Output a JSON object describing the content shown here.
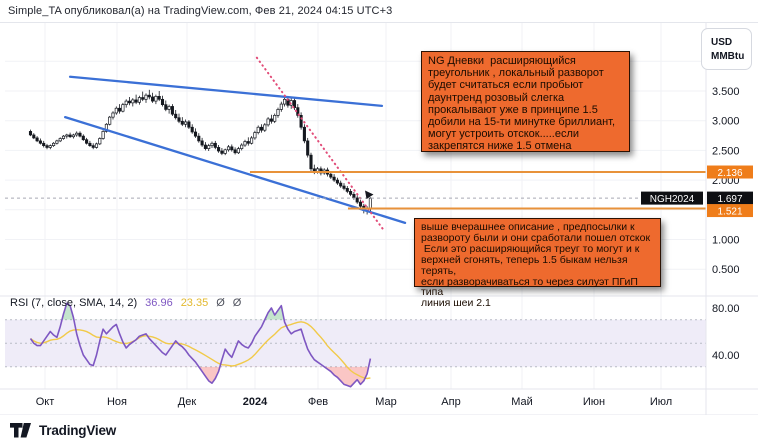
{
  "header": {
    "published_line": "Simple_TA опубликовал(а) на TradingView.com, Фев 21, 2024 04:15 UTC+3"
  },
  "price_scale_controls": {
    "currency": "USD",
    "unit": "MMBtu"
  },
  "rsi_header": {
    "title": "RSI (7, close, SMA, 14, 2)",
    "rsi_value": "36.96",
    "ma_value": "23.35",
    "source_1": "Ø",
    "source_2": "Ø"
  },
  "annotations": [
    {
      "name": "note-top",
      "text": "NG Дневки  расширяющийся\nтреугольник , локальный разворот\nбудет считаться если пробьют\nдаунтренд розовый слегка\nпрокалывают уже в принципе 1.5\nдобили на 15-ти минутке бриллиант,\nмогут устроить отскок.....если\nзакрепятся ниже 1.5 отмена"
    },
    {
      "name": "note-bottom",
      "text": "выше вчерашнее описание , предпосылки к\nразвороту были и они сработали пошел отскок\n Если это расширяющийся треуг то могут и к\nверхней сгонять, теперь 1.5 быкам нельзя терять,\nесли разворачиваться то через силуэт ПГиП типа\nлиния шеи 2.1"
    }
  ],
  "footer": {
    "brand": "TradingView"
  },
  "chart_data": {
    "type": "candlestick",
    "symbol": "NGH2024",
    "last_price": 1.697,
    "last_price_label": "1.697",
    "x_axis_labels": [
      "Окт",
      "Ноя",
      "Дек",
      "2024",
      "Фев",
      "Мар",
      "Апр",
      "Май",
      "Июн",
      "Июл"
    ],
    "price_axis_ticks": [
      {
        "label": "3.500",
        "value": 3.5
      },
      {
        "label": "3.000",
        "value": 3.0
      },
      {
        "label": "2.500",
        "value": 2.5
      },
      {
        "label": "2.000",
        "value": 2.0
      },
      {
        "label": "1.000",
        "value": 1.0
      },
      {
        "label": "0.500",
        "value": 0.5
      }
    ],
    "grid_prices": [
      4.0,
      3.5,
      3.0,
      2.5,
      2.0,
      1.5,
      1.0,
      0.5
    ],
    "visible_price_range": [
      0.05,
      4.6
    ],
    "levels": [
      {
        "label": "2.136",
        "value": 2.136,
        "start_bar": 66.5
      },
      {
        "label": "1.521",
        "value": 1.521,
        "start_bar": 96.2
      }
    ],
    "trendlines": [
      {
        "name": "upper-triangle-line",
        "points": [
          [
            12,
            3.74
          ],
          [
            106.5,
            3.25
          ]
        ]
      },
      {
        "name": "lower-triangle-line",
        "points": [
          [
            10.5,
            3.06
          ],
          [
            113.5,
            1.28
          ]
        ]
      }
    ],
    "downtrend_dotted": {
      "name": "pink-downtrend-line",
      "points": [
        [
          68.6,
          4.06
        ],
        [
          107.4,
          1.13
        ]
      ]
    },
    "candles": [
      [
        2.82,
        2.85,
        2.74,
        2.76
      ],
      [
        2.76,
        2.79,
        2.69,
        2.71
      ],
      [
        2.71,
        2.74,
        2.64,
        2.66
      ],
      [
        2.66,
        2.7,
        2.6,
        2.62
      ],
      [
        2.62,
        2.66,
        2.55,
        2.58
      ],
      [
        2.58,
        2.61,
        2.52,
        2.55
      ],
      [
        2.55,
        2.6,
        2.52,
        2.58
      ],
      [
        2.58,
        2.64,
        2.56,
        2.62
      ],
      [
        2.62,
        2.68,
        2.6,
        2.66
      ],
      [
        2.66,
        2.72,
        2.64,
        2.7
      ],
      [
        2.7,
        2.76,
        2.68,
        2.74
      ],
      [
        2.74,
        2.78,
        2.7,
        2.76
      ],
      [
        2.76,
        2.8,
        2.71,
        2.73
      ],
      [
        2.73,
        2.78,
        2.7,
        2.76
      ],
      [
        2.76,
        2.82,
        2.73,
        2.79
      ],
      [
        2.79,
        2.82,
        2.72,
        2.74
      ],
      [
        2.74,
        2.77,
        2.66,
        2.68
      ],
      [
        2.68,
        2.71,
        2.6,
        2.62
      ],
      [
        2.62,
        2.66,
        2.56,
        2.58
      ],
      [
        2.58,
        2.62,
        2.52,
        2.55
      ],
      [
        2.55,
        2.63,
        2.53,
        2.61
      ],
      [
        2.61,
        2.72,
        2.59,
        2.7
      ],
      [
        2.7,
        2.84,
        2.68,
        2.82
      ],
      [
        2.82,
        2.96,
        2.8,
        2.94
      ],
      [
        2.94,
        3.08,
        2.92,
        3.06
      ],
      [
        3.06,
        3.16,
        3.02,
        3.13
      ],
      [
        3.13,
        3.24,
        3.1,
        3.21
      ],
      [
        3.21,
        3.28,
        3.12,
        3.16
      ],
      [
        3.16,
        3.3,
        3.14,
        3.27
      ],
      [
        3.27,
        3.36,
        3.22,
        3.33
      ],
      [
        3.33,
        3.4,
        3.26,
        3.3
      ],
      [
        3.3,
        3.38,
        3.24,
        3.35
      ],
      [
        3.35,
        3.44,
        3.28,
        3.31
      ],
      [
        3.31,
        3.42,
        3.27,
        3.39
      ],
      [
        3.39,
        3.49,
        3.33,
        3.36
      ],
      [
        3.36,
        3.46,
        3.3,
        3.43
      ],
      [
        3.43,
        3.52,
        3.36,
        3.4
      ],
      [
        3.4,
        3.47,
        3.3,
        3.33
      ],
      [
        3.33,
        3.44,
        3.28,
        3.41
      ],
      [
        3.41,
        3.5,
        3.33,
        3.36
      ],
      [
        3.36,
        3.42,
        3.24,
        3.27
      ],
      [
        3.27,
        3.34,
        3.16,
        3.19
      ],
      [
        3.19,
        3.27,
        3.12,
        3.24
      ],
      [
        3.24,
        3.28,
        3.08,
        3.11
      ],
      [
        3.11,
        3.18,
        3.02,
        3.05
      ],
      [
        3.05,
        3.12,
        2.96,
        2.99
      ],
      [
        2.99,
        3.06,
        2.91,
        2.94
      ],
      [
        2.94,
        3.02,
        2.89,
        2.98
      ],
      [
        2.98,
        3.01,
        2.86,
        2.89
      ],
      [
        2.89,
        2.94,
        2.78,
        2.81
      ],
      [
        2.81,
        2.87,
        2.71,
        2.74
      ],
      [
        2.74,
        2.79,
        2.63,
        2.66
      ],
      [
        2.66,
        2.71,
        2.56,
        2.59
      ],
      [
        2.59,
        2.64,
        2.5,
        2.53
      ],
      [
        2.53,
        2.61,
        2.49,
        2.58
      ],
      [
        2.58,
        2.65,
        2.54,
        2.62
      ],
      [
        2.62,
        2.66,
        2.52,
        2.55
      ],
      [
        2.55,
        2.59,
        2.46,
        2.49
      ],
      [
        2.49,
        2.54,
        2.42,
        2.45
      ],
      [
        2.45,
        2.53,
        2.42,
        2.51
      ],
      [
        2.51,
        2.59,
        2.48,
        2.56
      ],
      [
        2.56,
        2.6,
        2.48,
        2.51
      ],
      [
        2.51,
        2.55,
        2.43,
        2.46
      ],
      [
        2.46,
        2.56,
        2.44,
        2.53
      ],
      [
        2.53,
        2.62,
        2.5,
        2.59
      ],
      [
        2.59,
        2.68,
        2.56,
        2.65
      ],
      [
        2.65,
        2.72,
        2.58,
        2.62
      ],
      [
        2.62,
        2.74,
        2.6,
        2.71
      ],
      [
        2.71,
        2.83,
        2.68,
        2.8
      ],
      [
        2.8,
        2.92,
        2.77,
        2.89
      ],
      [
        2.89,
        2.94,
        2.8,
        2.84
      ],
      [
        2.84,
        2.96,
        2.81,
        2.93
      ],
      [
        2.93,
        3.06,
        2.9,
        3.03
      ],
      [
        3.03,
        3.1,
        2.95,
        2.99
      ],
      [
        2.99,
        3.12,
        2.96,
        3.09
      ],
      [
        3.09,
        3.22,
        3.05,
        3.19
      ],
      [
        3.19,
        3.32,
        3.15,
        3.28
      ],
      [
        3.28,
        3.43,
        3.24,
        3.36
      ],
      [
        3.36,
        3.4,
        3.22,
        3.26
      ],
      [
        3.26,
        3.38,
        3.2,
        3.34
      ],
      [
        3.34,
        3.39,
        3.18,
        3.22
      ],
      [
        3.22,
        3.28,
        3.05,
        3.09
      ],
      [
        3.09,
        3.14,
        2.85,
        2.89
      ],
      [
        2.89,
        2.94,
        2.62,
        2.66
      ],
      [
        2.66,
        2.71,
        2.38,
        2.42
      ],
      [
        2.42,
        2.46,
        2.15,
        2.19
      ],
      [
        2.19,
        2.26,
        2.1,
        2.14
      ],
      [
        2.14,
        2.22,
        2.11,
        2.19
      ],
      [
        2.19,
        2.23,
        2.08,
        2.12
      ],
      [
        2.12,
        2.2,
        2.09,
        2.17
      ],
      [
        2.17,
        2.21,
        2.06,
        2.1
      ],
      [
        2.1,
        2.15,
        2.02,
        2.05
      ],
      [
        2.05,
        2.1,
        1.97,
        2.0
      ],
      [
        2.0,
        2.04,
        1.92,
        1.95
      ],
      [
        1.95,
        1.99,
        1.87,
        1.9
      ],
      [
        1.9,
        1.95,
        1.83,
        1.86
      ],
      [
        1.86,
        1.9,
        1.78,
        1.81
      ],
      [
        1.81,
        1.85,
        1.73,
        1.76
      ],
      [
        1.76,
        1.8,
        1.67,
        1.7
      ],
      [
        1.7,
        1.74,
        1.6,
        1.63
      ],
      [
        1.63,
        1.67,
        1.52,
        1.56
      ],
      [
        1.56,
        1.6,
        1.44,
        1.49
      ],
      [
        1.49,
        1.56,
        1.42,
        1.53
      ],
      [
        1.53,
        1.71,
        1.46,
        1.697
      ]
    ],
    "rsi": {
      "name": "RSI",
      "axis_ticks": [
        {
          "label": "80.00",
          "value": 80
        },
        {
          "label": "40.00",
          "value": 40
        }
      ],
      "overbought": 70,
      "midline": 50,
      "oversold": 30,
      "sma_period": 14,
      "values": [
        54,
        50,
        48,
        48,
        52,
        56,
        60,
        57,
        55,
        64,
        75,
        84,
        82,
        72,
        58,
        48,
        40,
        36,
        32,
        31,
        40,
        52,
        62,
        58,
        61,
        64,
        66,
        58,
        51,
        46,
        49,
        51,
        53,
        56,
        57,
        58,
        54,
        51,
        48,
        45,
        42,
        40,
        44,
        48,
        52,
        49,
        47,
        44,
        40,
        37,
        34,
        30,
        26,
        22,
        18,
        16,
        20,
        26,
        36,
        45,
        41,
        38,
        45,
        52,
        49,
        47,
        46,
        50,
        56,
        60,
        64,
        70,
        76,
        80,
        74,
        78,
        82,
        68,
        62,
        58,
        60,
        61,
        62,
        53,
        45,
        40,
        36,
        34,
        32,
        30,
        28,
        26,
        23,
        21,
        18,
        15,
        14,
        13,
        16,
        19,
        15,
        18,
        24,
        36.96
      ]
    }
  }
}
